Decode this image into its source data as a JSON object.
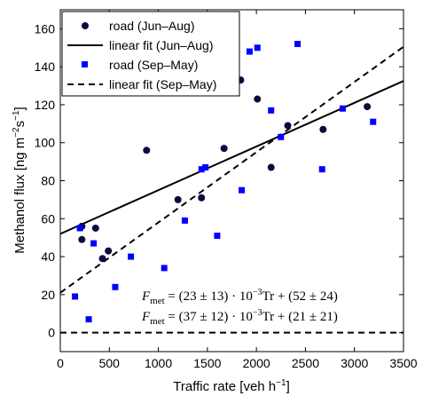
{
  "chart_data": {
    "type": "scatter",
    "xlabel": "Traffic rate [veh h",
    "xlabel_sup": "−1",
    "xlabel_end": "]",
    "ylabel_parts": [
      "Methanol flux [ng m",
      "−2",
      "s",
      "−1",
      "]"
    ],
    "xlim": [
      0,
      3500
    ],
    "ylim": [
      -10,
      170
    ],
    "xticks": [
      0,
      500,
      1000,
      1500,
      2000,
      2500,
      3000,
      3500
    ],
    "yticks": [
      0,
      20,
      40,
      60,
      80,
      100,
      120,
      140,
      160
    ],
    "grid": false,
    "legend_position": "top-left",
    "reference_line": {
      "y": 0,
      "style": "dashed"
    },
    "series": [
      {
        "name": "road (Jun–Aug)",
        "marker": "circle",
        "color": "#0a0a3c",
        "points": [
          [
            220,
            49
          ],
          [
            220,
            56
          ],
          [
            360,
            55
          ],
          [
            430,
            39
          ],
          [
            490,
            43
          ],
          [
            880,
            96
          ],
          [
            1200,
            70
          ],
          [
            1440,
            71
          ],
          [
            1670,
            97
          ],
          [
            1840,
            133
          ],
          [
            2010,
            123
          ],
          [
            2150,
            87
          ],
          [
            2320,
            109
          ],
          [
            2680,
            107
          ],
          [
            3130,
            119
          ]
        ]
      },
      {
        "name": "linear fit (Jun–Aug)",
        "type": "line",
        "style": "solid",
        "color": "#000000",
        "slope": 0.023,
        "intercept": 52
      },
      {
        "name": "road (Sep–May)",
        "marker": "square",
        "color": "#0000ff",
        "points": [
          [
            200,
            55
          ],
          [
            150,
            19
          ],
          [
            290,
            7
          ],
          [
            340,
            47
          ],
          [
            560,
            24
          ],
          [
            720,
            40
          ],
          [
            1060,
            34
          ],
          [
            1270,
            59
          ],
          [
            1440,
            86
          ],
          [
            1480,
            87
          ],
          [
            1600,
            51
          ],
          [
            1850,
            75
          ],
          [
            1930,
            148
          ],
          [
            2010,
            150
          ],
          [
            2150,
            117
          ],
          [
            2250,
            103
          ],
          [
            2420,
            152
          ],
          [
            2670,
            86
          ],
          [
            2880,
            118
          ],
          [
            3190,
            111
          ]
        ]
      },
      {
        "name": "linear fit (Sep–May)",
        "type": "line",
        "style": "dashed",
        "color": "#000000",
        "slope": 0.037,
        "intercept": 21
      }
    ],
    "annotations": [
      {
        "lhs": "F",
        "lhs_sub": "met",
        "rhs": " = (23 ± 13) · 10",
        "exp": "−3",
        "rhs_end": "Tr + (52 ± 24)"
      },
      {
        "lhs": "F",
        "lhs_sub": "met",
        "rhs": " = (37 ± 12) · 10",
        "exp": "−3",
        "rhs_end": "Tr + (21 ± 21)"
      }
    ]
  }
}
